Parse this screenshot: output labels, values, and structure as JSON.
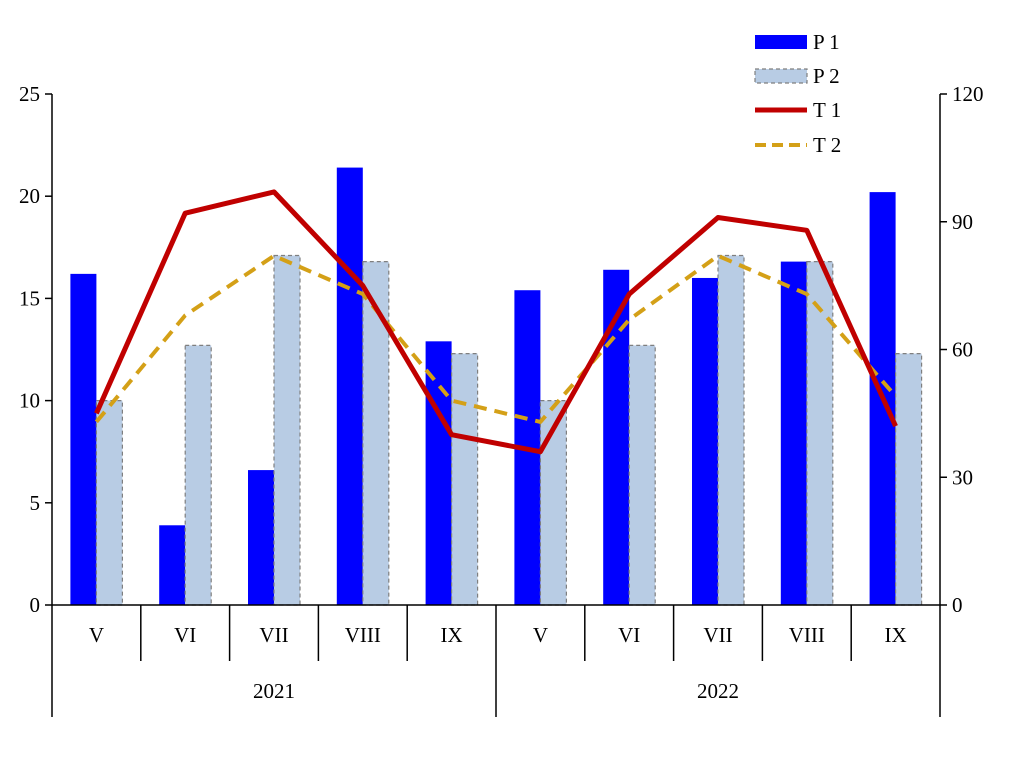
{
  "chart_data": {
    "type": "bar",
    "groups": [
      {
        "label": "2021",
        "categories": [
          "V",
          "VI",
          "VII",
          "VIII",
          "IX"
        ]
      },
      {
        "label": "2022",
        "categories": [
          "V",
          "VI",
          "VII",
          "VIII",
          "IX"
        ]
      }
    ],
    "series": [
      {
        "name": "P 1",
        "kind": "bar",
        "axis": "left",
        "color": "#0000FF",
        "values": [
          16.2,
          3.9,
          6.6,
          21.4,
          12.9,
          15.4,
          16.4,
          16.0,
          16.8,
          20.2
        ]
      },
      {
        "name": "P 2",
        "kind": "bar",
        "axis": "left",
        "color": "#B8CCE4",
        "stroke": "#7F7F7F",
        "values": [
          10.0,
          12.7,
          17.1,
          16.8,
          12.3,
          10.0,
          12.7,
          17.1,
          16.8,
          12.3
        ]
      },
      {
        "name": "T 1",
        "kind": "line",
        "axis": "right",
        "color": "#C00000",
        "dash": "solid",
        "values": [
          45,
          92,
          97,
          75,
          40,
          36,
          73,
          91,
          88,
          42
        ]
      },
      {
        "name": "T 2",
        "kind": "line",
        "axis": "right",
        "color": "#D4A017",
        "dash": "dashed",
        "values": [
          43,
          68,
          82,
          73,
          48,
          43,
          67,
          82,
          73,
          49
        ]
      }
    ],
    "y_left": {
      "min": 0,
      "max": 25,
      "ticks": [
        "0",
        "5",
        "10",
        "15",
        "20",
        "25"
      ]
    },
    "y_right": {
      "min": 0,
      "max": 120,
      "ticks": [
        "0",
        "30",
        "60",
        "90",
        "120"
      ]
    },
    "legend": {
      "position": "top-right"
    },
    "grid": false
  }
}
